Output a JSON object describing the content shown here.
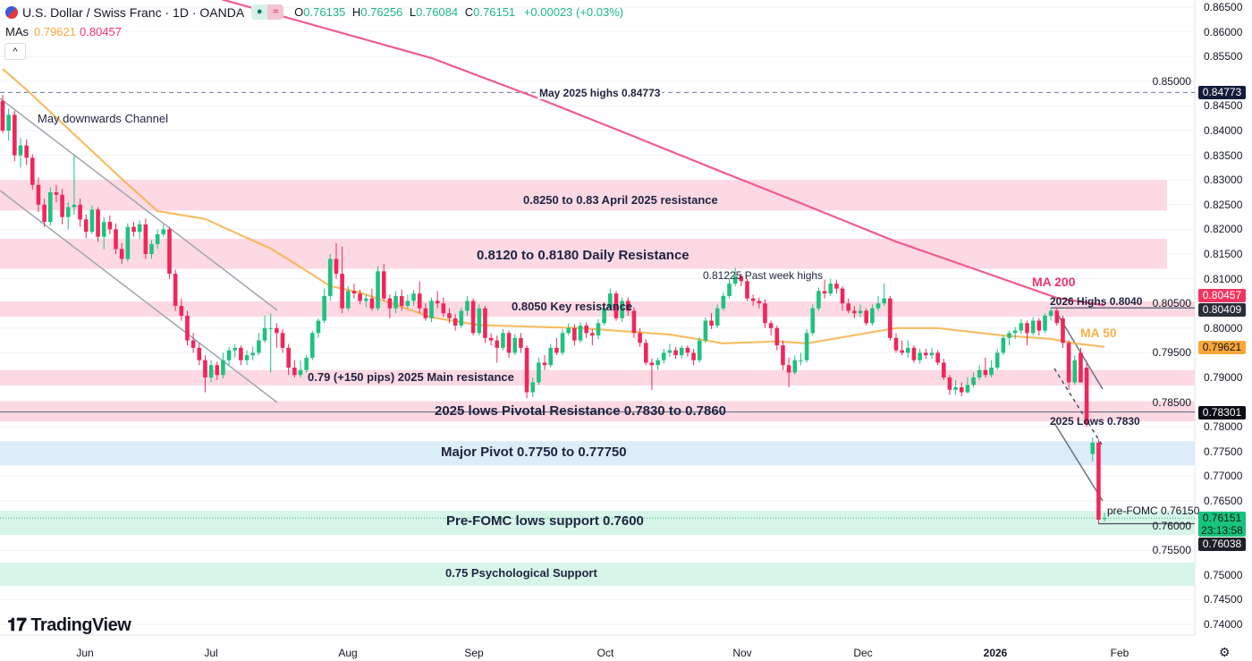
{
  "header": {
    "symbol": "U.S. Dollar / Swiss Franc · 1D · OANDA",
    "o_key": "O",
    "o": "0.76135",
    "h_key": "H",
    "h": "0.76256",
    "l_key": "L",
    "l": "0.76084",
    "c_key": "C",
    "c": "0.76151",
    "change": "+0.00023 (+0.03%)",
    "collapse_icon": "chevron-up"
  },
  "mas": {
    "label": "MAs",
    "ma50": "0.79621",
    "ma200": "0.80457"
  },
  "logo": "TradingView",
  "colors": {
    "up": "#1ec27f",
    "down": "#f0265a",
    "ma50": "#f7b24a",
    "ma200": "#f25b8e",
    "resistance_zone": "#fdd9e3",
    "pivot_zone": "#dcecf8",
    "support_zone": "#d8f5e9"
  },
  "annotations": {
    "may_highs": "May 2025 highs 0.84773",
    "channel": "May downwards Channel",
    "april_res": "0.8250 to 0.83 April 2025 resistance",
    "daily_res": "0.8120 to 0.8180 Daily Resistance",
    "past_week_highs": "0.81225 Past week highs",
    "key_res": "0.8050 Key resistance",
    "main_res": "0.79 (+150 pips) 2025 Main resistance",
    "pivotal_res": "2025 lows Pivotal Resistance 0.7830 to 0.7860",
    "major_pivot": "Major Pivot 0.7750 to 0.77750",
    "prefomc_support": "Pre-FOMC lows support 0.7600",
    "psych_support": "0.75 Psychological Support",
    "ma200": "MA 200",
    "ma50": "MA 50",
    "highs_2026": "2026 Highs 0.8040",
    "lows_2025": "2025 Lows 0.7830",
    "prefomc": "pre-FOMC 0.76150"
  },
  "price_badges": {
    "may_high": "0.84773",
    "ma200": "0.80457",
    "high_2026": "0.80409",
    "ma50": "0.79621",
    "low_2025": "0.78301",
    "last": "0.76151",
    "countdown": "23:13:58",
    "prefomc_low": "0.76038"
  },
  "chart_data": {
    "type": "candlestick",
    "title": "U.S. Dollar / Swiss Franc · 1D · OANDA",
    "ylim": [
      0.74,
      0.865
    ],
    "y_ticks": [
      "0.86500",
      "0.86000",
      "0.85500",
      "0.85000",
      "0.84500",
      "0.84000",
      "0.83500",
      "0.83000",
      "0.82500",
      "0.82000",
      "0.81500",
      "0.81000",
      "0.80500",
      "0.80000",
      "0.79500",
      "0.79000",
      "0.78500",
      "0.78000",
      "0.77500",
      "0.77000",
      "0.76500",
      "0.76000",
      "0.75500",
      "0.75000",
      "0.74500",
      "0.74000"
    ],
    "x_ticks": [
      "Jun",
      "Jul",
      "Aug",
      "Sep",
      "Oct",
      "Nov",
      "Dec",
      "2026",
      "Feb"
    ],
    "zones": [
      {
        "name": "april-2025-resistance",
        "high": 0.83,
        "low": 0.8238,
        "kind": "resistance"
      },
      {
        "name": "daily-resistance",
        "high": 0.8181,
        "low": 0.812,
        "kind": "resistance"
      },
      {
        "name": "key-resistance",
        "high": 0.8054,
        "low": 0.8023,
        "kind": "resistance"
      },
      {
        "name": "main-resistance",
        "high": 0.7915,
        "low": 0.7884,
        "kind": "resistance"
      },
      {
        "name": "pivotal-resistance",
        "high": 0.7852,
        "low": 0.7811,
        "kind": "resistance"
      },
      {
        "name": "major-pivot",
        "high": 0.7771,
        "low": 0.7722,
        "kind": "pivot"
      },
      {
        "name": "prefomc-support",
        "high": 0.763,
        "low": 0.7581,
        "kind": "support"
      },
      {
        "name": "psych-support",
        "high": 0.7525,
        "low": 0.7478,
        "kind": "support"
      }
    ],
    "levels": {
      "may_high": 0.84773,
      "high_2026": 0.80409,
      "low_2025": 0.78301,
      "prefomc_low": 0.76038,
      "last": 0.76151
    },
    "ma50": [
      [
        0,
        0.8525
      ],
      [
        4,
        0.8483
      ],
      [
        20,
        0.8302
      ],
      [
        26,
        0.8237
      ],
      [
        34,
        0.8221
      ],
      [
        40,
        0.8188
      ],
      [
        45,
        0.8161
      ],
      [
        48,
        0.8139
      ],
      [
        55,
        0.8085
      ],
      [
        60,
        0.8072
      ],
      [
        72,
        0.8022
      ],
      [
        80,
        0.8006
      ],
      [
        97,
        0.8
      ],
      [
        112,
        0.7987
      ],
      [
        121,
        0.7969
      ],
      [
        130,
        0.7973
      ],
      [
        135,
        0.7969
      ],
      [
        150,
        0.8
      ],
      [
        157,
        0.8
      ],
      [
        168,
        0.7985
      ],
      [
        176,
        0.7978
      ],
      [
        180,
        0.7969
      ],
      [
        185,
        0.7962
      ]
    ],
    "ma200": [
      [
        37,
        0.8665
      ],
      [
        72,
        0.8547
      ],
      [
        90,
        0.8465
      ],
      [
        105,
        0.8393
      ],
      [
        120,
        0.832
      ],
      [
        135,
        0.8248
      ],
      [
        150,
        0.8175
      ],
      [
        165,
        0.8112
      ],
      [
        177,
        0.8061
      ],
      [
        185,
        0.8046
      ]
    ],
    "candles": [
      [
        0.846,
        0.8472,
        0.8395,
        0.84
      ],
      [
        0.84,
        0.8445,
        0.838,
        0.8432
      ],
      [
        0.8432,
        0.844,
        0.8338,
        0.835
      ],
      [
        0.835,
        0.8385,
        0.8325,
        0.837
      ],
      [
        0.837,
        0.8382,
        0.833,
        0.8345
      ],
      [
        0.8345,
        0.8352,
        0.828,
        0.829
      ],
      [
        0.829,
        0.8305,
        0.8235,
        0.825
      ],
      [
        0.825,
        0.8262,
        0.8205,
        0.8215
      ],
      [
        0.8215,
        0.8285,
        0.8208,
        0.8275
      ],
      [
        0.8275,
        0.829,
        0.8255,
        0.827
      ],
      [
        0.827,
        0.8282,
        0.821,
        0.8225
      ],
      [
        0.8225,
        0.8255,
        0.82,
        0.8245
      ],
      [
        0.8245,
        0.835,
        0.823,
        0.825
      ],
      [
        0.825,
        0.8262,
        0.8205,
        0.822
      ],
      [
        0.822,
        0.823,
        0.8182,
        0.8195
      ],
      [
        0.8195,
        0.8248,
        0.819,
        0.824
      ],
      [
        0.824,
        0.8245,
        0.8175,
        0.8185
      ],
      [
        0.8185,
        0.8225,
        0.816,
        0.8215
      ],
      [
        0.8215,
        0.8228,
        0.819,
        0.82
      ],
      [
        0.82,
        0.8212,
        0.815,
        0.816
      ],
      [
        0.816,
        0.8172,
        0.813,
        0.814
      ],
      [
        0.814,
        0.8212,
        0.8135,
        0.8205
      ],
      [
        0.8205,
        0.8215,
        0.8185,
        0.8195
      ],
      [
        0.8195,
        0.8218,
        0.818,
        0.821
      ],
      [
        0.821,
        0.8222,
        0.814,
        0.815
      ],
      [
        0.815,
        0.8178,
        0.814,
        0.817
      ],
      [
        0.817,
        0.82,
        0.816,
        0.819
      ],
      [
        0.819,
        0.821,
        0.8185,
        0.82
      ],
      [
        0.82,
        0.8205,
        0.81,
        0.811
      ],
      [
        0.811,
        0.8118,
        0.8035,
        0.8045
      ],
      [
        0.8045,
        0.806,
        0.8015,
        0.8025
      ],
      [
        0.8025,
        0.8035,
        0.7965,
        0.7975
      ],
      [
        0.7975,
        0.799,
        0.795,
        0.796
      ],
      [
        0.796,
        0.797,
        0.7925,
        0.7935
      ],
      [
        0.7935,
        0.7945,
        0.787,
        0.79
      ],
      [
        0.79,
        0.7935,
        0.789,
        0.7925
      ],
      [
        0.7925,
        0.7932,
        0.7895,
        0.7905
      ],
      [
        0.7905,
        0.795,
        0.7898,
        0.7935
      ],
      [
        0.7935,
        0.7962,
        0.7925,
        0.7955
      ],
      [
        0.7955,
        0.7968,
        0.794,
        0.796
      ],
      [
        0.796,
        0.7965,
        0.7925,
        0.7935
      ],
      [
        0.7935,
        0.7955,
        0.7925,
        0.7945
      ],
      [
        0.7945,
        0.7962,
        0.7935,
        0.795
      ],
      [
        0.795,
        0.799,
        0.7945,
        0.7975
      ],
      [
        0.7975,
        0.8025,
        0.797,
        0.8
      ],
      [
        0.8,
        0.803,
        0.791,
        0.8
      ],
      [
        0.8,
        0.801,
        0.796,
        0.799
      ],
      [
        0.799,
        0.7998,
        0.795,
        0.796
      ],
      [
        0.796,
        0.7968,
        0.7905,
        0.792
      ],
      [
        0.792,
        0.7935,
        0.79,
        0.7905
      ],
      [
        0.7905,
        0.7935,
        0.79,
        0.7915
      ],
      [
        0.7915,
        0.7945,
        0.791,
        0.794
      ],
      [
        0.794,
        0.7995,
        0.7935,
        0.799
      ],
      [
        0.799,
        0.802,
        0.798,
        0.8015
      ],
      [
        0.8015,
        0.808,
        0.801,
        0.8065
      ],
      [
        0.8065,
        0.815,
        0.8055,
        0.814
      ],
      [
        0.814,
        0.8172,
        0.81,
        0.811
      ],
      [
        0.811,
        0.8165,
        0.803,
        0.804
      ],
      [
        0.804,
        0.8085,
        0.8035,
        0.8075
      ],
      [
        0.8075,
        0.809,
        0.806,
        0.807
      ],
      [
        0.807,
        0.8078,
        0.8048,
        0.8055
      ],
      [
        0.8055,
        0.8068,
        0.8042,
        0.806
      ],
      [
        0.806,
        0.808,
        0.8035,
        0.804
      ],
      [
        0.804,
        0.8125,
        0.8035,
        0.8115
      ],
      [
        0.8115,
        0.813,
        0.8055,
        0.806
      ],
      [
        0.806,
        0.8068,
        0.802,
        0.804
      ],
      [
        0.804,
        0.8075,
        0.803,
        0.8065
      ],
      [
        0.8065,
        0.8078,
        0.8035,
        0.8045
      ],
      [
        0.8045,
        0.8068,
        0.804,
        0.8055
      ],
      [
        0.8055,
        0.8078,
        0.8045,
        0.807
      ],
      [
        0.807,
        0.8095,
        0.803,
        0.804
      ],
      [
        0.804,
        0.805,
        0.8015,
        0.802
      ],
      [
        0.802,
        0.8062,
        0.8012,
        0.8055
      ],
      [
        0.8055,
        0.8075,
        0.804,
        0.805
      ],
      [
        0.805,
        0.8062,
        0.8022,
        0.803
      ],
      [
        0.803,
        0.804,
        0.801,
        0.802
      ],
      [
        0.802,
        0.8028,
        0.7995,
        0.8005
      ],
      [
        0.8005,
        0.8042,
        0.8,
        0.8035
      ],
      [
        0.8035,
        0.8065,
        0.8025,
        0.8055
      ],
      [
        0.8055,
        0.806,
        0.7985,
        0.799
      ],
      [
        0.799,
        0.8048,
        0.7985,
        0.804
      ],
      [
        0.804,
        0.8045,
        0.797,
        0.798
      ],
      [
        0.798,
        0.799,
        0.7965,
        0.7975
      ],
      [
        0.7975,
        0.7985,
        0.793,
        0.796
      ],
      [
        0.796,
        0.7998,
        0.7955,
        0.799
      ],
      [
        0.799,
        0.7995,
        0.794,
        0.795
      ],
      [
        0.795,
        0.7988,
        0.7945,
        0.798
      ],
      [
        0.798,
        0.799,
        0.795,
        0.796
      ],
      [
        0.796,
        0.7965,
        0.7858,
        0.787
      ],
      [
        0.787,
        0.79,
        0.786,
        0.789
      ],
      [
        0.789,
        0.794,
        0.7885,
        0.793
      ],
      [
        0.793,
        0.7945,
        0.7915,
        0.7925
      ],
      [
        0.7925,
        0.7968,
        0.792,
        0.796
      ],
      [
        0.796,
        0.798,
        0.7945,
        0.795
      ],
      [
        0.795,
        0.7998,
        0.7945,
        0.799
      ],
      [
        0.799,
        0.801,
        0.7985,
        0.8
      ],
      [
        0.8,
        0.8008,
        0.7965,
        0.7975
      ],
      [
        0.7975,
        0.8012,
        0.797,
        0.8005
      ],
      [
        0.8005,
        0.8012,
        0.798,
        0.799
      ],
      [
        0.799,
        0.7998,
        0.7965,
        0.7985
      ],
      [
        0.7985,
        0.8018,
        0.7978,
        0.801
      ],
      [
        0.801,
        0.8048,
        0.8005,
        0.804
      ],
      [
        0.804,
        0.808,
        0.8035,
        0.807
      ],
      [
        0.807,
        0.8075,
        0.8015,
        0.802
      ],
      [
        0.802,
        0.8062,
        0.8012,
        0.8055
      ],
      [
        0.8055,
        0.8062,
        0.8025,
        0.8035
      ],
      [
        0.8035,
        0.8042,
        0.798,
        0.799
      ],
      [
        0.799,
        0.8,
        0.7962,
        0.797
      ],
      [
        0.797,
        0.7978,
        0.7925,
        0.793
      ],
      [
        0.793,
        0.7938,
        0.7875,
        0.7925
      ],
      [
        0.7925,
        0.794,
        0.7915,
        0.7935
      ],
      [
        0.7935,
        0.7958,
        0.7928,
        0.795
      ],
      [
        0.795,
        0.7968,
        0.7942,
        0.7955
      ],
      [
        0.7955,
        0.7962,
        0.7938,
        0.7945
      ],
      [
        0.7945,
        0.7965,
        0.7938,
        0.796
      ],
      [
        0.796,
        0.7965,
        0.7942,
        0.795
      ],
      [
        0.795,
        0.7958,
        0.7925,
        0.7935
      ],
      [
        0.7935,
        0.7982,
        0.793,
        0.7975
      ],
      [
        0.7975,
        0.8022,
        0.797,
        0.8015
      ],
      [
        0.8015,
        0.803,
        0.7998,
        0.8005
      ],
      [
        0.8005,
        0.8048,
        0.8,
        0.804
      ],
      [
        0.804,
        0.8072,
        0.8035,
        0.8065
      ],
      [
        0.8065,
        0.81,
        0.806,
        0.809
      ],
      [
        0.809,
        0.8122,
        0.8085,
        0.8105
      ],
      [
        0.8105,
        0.811,
        0.8085,
        0.8095
      ],
      [
        0.8095,
        0.81,
        0.8055,
        0.806
      ],
      [
        0.806,
        0.8068,
        0.8045,
        0.8055
      ],
      [
        0.8055,
        0.8062,
        0.804,
        0.805
      ],
      [
        0.805,
        0.8058,
        0.8,
        0.801
      ],
      [
        0.801,
        0.8015,
        0.7985,
        0.8
      ],
      [
        0.8,
        0.8005,
        0.7955,
        0.7965
      ],
      [
        0.7965,
        0.7975,
        0.7915,
        0.7925
      ],
      [
        0.7925,
        0.794,
        0.788,
        0.791
      ],
      [
        0.791,
        0.7945,
        0.7905,
        0.7935
      ],
      [
        0.7935,
        0.795,
        0.7925,
        0.7935
      ],
      [
        0.7935,
        0.7998,
        0.793,
        0.799
      ],
      [
        0.799,
        0.8048,
        0.7985,
        0.804
      ],
      [
        0.804,
        0.8082,
        0.8035,
        0.8075
      ],
      [
        0.8075,
        0.8098,
        0.806,
        0.807
      ],
      [
        0.807,
        0.81,
        0.8065,
        0.809
      ],
      [
        0.809,
        0.8098,
        0.807,
        0.808
      ],
      [
        0.808,
        0.8085,
        0.8035,
        0.805
      ],
      [
        0.805,
        0.806,
        0.803,
        0.8035
      ],
      [
        0.8035,
        0.8045,
        0.802,
        0.803
      ],
      [
        0.803,
        0.8048,
        0.8022,
        0.8035
      ],
      [
        0.8035,
        0.804,
        0.8005,
        0.801
      ],
      [
        0.801,
        0.8048,
        0.8005,
        0.804
      ],
      [
        0.804,
        0.8065,
        0.8035,
        0.805
      ],
      [
        0.805,
        0.809,
        0.8045,
        0.806
      ],
      [
        0.806,
        0.8065,
        0.7975,
        0.798
      ],
      [
        0.798,
        0.799,
        0.795,
        0.7955
      ],
      [
        0.7955,
        0.7975,
        0.7945,
        0.795
      ],
      [
        0.795,
        0.7975,
        0.794,
        0.796
      ],
      [
        0.796,
        0.7965,
        0.793,
        0.7935
      ],
      [
        0.7935,
        0.7958,
        0.7928,
        0.795
      ],
      [
        0.795,
        0.7958,
        0.7938,
        0.7945
      ],
      [
        0.7945,
        0.796,
        0.7938,
        0.795
      ],
      [
        0.795,
        0.7955,
        0.7925,
        0.793
      ],
      [
        0.793,
        0.7938,
        0.7895,
        0.79
      ],
      [
        0.79,
        0.7905,
        0.7865,
        0.7875
      ],
      [
        0.7875,
        0.7895,
        0.7865,
        0.788
      ],
      [
        0.788,
        0.789,
        0.7862,
        0.787
      ],
      [
        0.787,
        0.79,
        0.7868,
        0.7885
      ],
      [
        0.7885,
        0.791,
        0.788,
        0.79
      ],
      [
        0.79,
        0.7925,
        0.7895,
        0.7915
      ],
      [
        0.7915,
        0.794,
        0.79,
        0.7905
      ],
      [
        0.7905,
        0.7935,
        0.79,
        0.792
      ],
      [
        0.792,
        0.7958,
        0.7915,
        0.795
      ],
      [
        0.795,
        0.7985,
        0.7945,
        0.798
      ],
      [
        0.798,
        0.7995,
        0.7965,
        0.799
      ],
      [
        0.799,
        0.8002,
        0.7978,
        0.7995
      ],
      [
        0.7995,
        0.8018,
        0.7988,
        0.801
      ],
      [
        0.801,
        0.8015,
        0.7965,
        0.799
      ],
      [
        0.799,
        0.8022,
        0.7985,
        0.8015
      ],
      [
        0.8015,
        0.802,
        0.7985,
        0.7995
      ],
      [
        0.7995,
        0.803,
        0.799,
        0.8025
      ],
      [
        0.8025,
        0.8041,
        0.8015,
        0.8035
      ],
      [
        0.8035,
        0.804,
        0.8005,
        0.801
      ],
      [
        0.802,
        0.8025,
        0.796,
        0.797
      ],
      [
        0.797,
        0.7975,
        0.7875,
        0.789
      ],
      [
        0.789,
        0.7945,
        0.7885,
        0.7935
      ],
      [
        0.795,
        0.796,
        0.789,
        0.789
      ],
      [
        0.792,
        0.793,
        0.78,
        0.7805
      ],
      [
        0.7745,
        0.7778,
        0.773,
        0.7768
      ],
      [
        0.7768,
        0.7775,
        0.7604,
        0.7612
      ],
      [
        0.76135,
        0.76256,
        0.76084,
        0.76151
      ]
    ]
  }
}
